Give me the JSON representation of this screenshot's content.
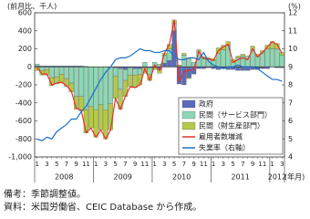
{
  "chart_data": {
    "type": "combo",
    "y_label": "(前月比、千人)",
    "y2_label": "(%)",
    "x_label": "(年月)",
    "categories": [
      "1",
      null,
      "3",
      null,
      "5",
      null,
      "7",
      null,
      "9",
      null,
      "11",
      null,
      "1",
      null,
      "3",
      null,
      "5",
      null,
      "7",
      null,
      "9",
      null,
      "11",
      null,
      "1",
      null,
      "3",
      null,
      "5",
      null,
      "7",
      null,
      "9",
      null,
      "11",
      null,
      "1",
      null,
      "3",
      null,
      "5",
      null,
      "7",
      null,
      "9",
      null,
      "11",
      null,
      "1",
      null,
      "3"
    ],
    "years": [
      "2008",
      "2009",
      "2010",
      "2011",
      "2012"
    ],
    "ylim": [
      -1000,
      600
    ],
    "yticks": [
      {
        "value": -1000,
        "label": "-1,000"
      },
      -800,
      -600,
      -400,
      -200,
      0,
      200,
      400,
      600
    ],
    "y2lim": [
      4,
      12
    ],
    "y2ticks": [
      4,
      5,
      6,
      7,
      8,
      9,
      10,
      11,
      12
    ],
    "series": [
      {
        "name": "政府",
        "type": "bar",
        "color": "#5a6cb8",
        "values": [
          10,
          10,
          10,
          10,
          10,
          10,
          10,
          10,
          10,
          10,
          5,
          0,
          0,
          0,
          0,
          0,
          -10,
          -20,
          -30,
          -10,
          -20,
          -20,
          -10,
          -10,
          -10,
          -30,
          40,
          70,
          400,
          -190,
          -200,
          -120,
          -80,
          -20,
          -20,
          -10,
          -20,
          -30,
          -20,
          -30,
          -30,
          -40,
          -40,
          -40,
          -30,
          -30,
          -20,
          -20,
          0,
          -10,
          -10
        ]
      },
      {
        "name": "民間（サービス部門）",
        "type": "bar",
        "color": "#8ed6b4",
        "values": [
          20,
          -40,
          -30,
          -120,
          -110,
          -80,
          -130,
          -180,
          -330,
          -330,
          -475,
          -440,
          -480,
          -420,
          -480,
          -410,
          -90,
          -230,
          -120,
          -80,
          -70,
          -60,
          50,
          -70,
          50,
          30,
          90,
          130,
          80,
          10,
          130,
          90,
          50,
          170,
          100,
          80,
          70,
          150,
          190,
          240,
          50,
          100,
          120,
          120,
          190,
          120,
          150,
          200,
          200,
          200,
          130
        ]
      },
      {
        "name": "民間（財生産部門）",
        "type": "bar",
        "color": "#b6c84a",
        "values": [
          -40,
          -50,
          -60,
          -90,
          -80,
          -100,
          -90,
          -100,
          -140,
          -160,
          -260,
          -240,
          -300,
          -280,
          -320,
          -290,
          -250,
          -220,
          -180,
          -130,
          -140,
          -120,
          -60,
          -70,
          -20,
          -40,
          20,
          50,
          40,
          10,
          20,
          -10,
          0,
          20,
          10,
          20,
          20,
          60,
          50,
          40,
          30,
          20,
          20,
          0,
          40,
          20,
          30,
          40,
          80,
          60,
          30
        ]
      },
      {
        "name": "雇用者数増減",
        "type": "line",
        "color": "#e2302a",
        "values": [
          -10,
          -80,
          -80,
          -200,
          -180,
          -170,
          -210,
          -270,
          -460,
          -480,
          -730,
          -680,
          -780,
          -700,
          -800,
          -700,
          -350,
          -470,
          -330,
          -220,
          -230,
          -200,
          -20,
          -150,
          20,
          -40,
          150,
          250,
          520,
          -170,
          -50,
          -40,
          -30,
          170,
          90,
          90,
          70,
          180,
          220,
          250,
          50,
          80,
          100,
          80,
          200,
          110,
          160,
          220,
          280,
          250,
          150
        ]
      },
      {
        "name": "失業率（右軸）",
        "type": "line",
        "axis": "y2",
        "color": "#1f6fc4",
        "values": [
          5.0,
          4.9,
          5.1,
          5.0,
          5.4,
          5.6,
          5.8,
          6.1,
          6.1,
          6.5,
          6.8,
          7.3,
          7.8,
          8.3,
          8.7,
          9.0,
          9.4,
          9.5,
          9.5,
          9.6,
          9.8,
          10.0,
          9.9,
          9.9,
          9.8,
          9.8,
          9.9,
          9.9,
          9.6,
          9.4,
          9.4,
          9.5,
          9.5,
          9.4,
          9.8,
          9.3,
          9.1,
          9.0,
          8.9,
          9.0,
          9.0,
          9.1,
          9.0,
          9.0,
          9.0,
          8.9,
          8.7,
          8.5,
          8.3,
          8.3,
          8.2
        ]
      }
    ],
    "notes": [
      "備考：季節調整値。",
      "資料：米国労働省、CEIC Database から作成。"
    ]
  }
}
